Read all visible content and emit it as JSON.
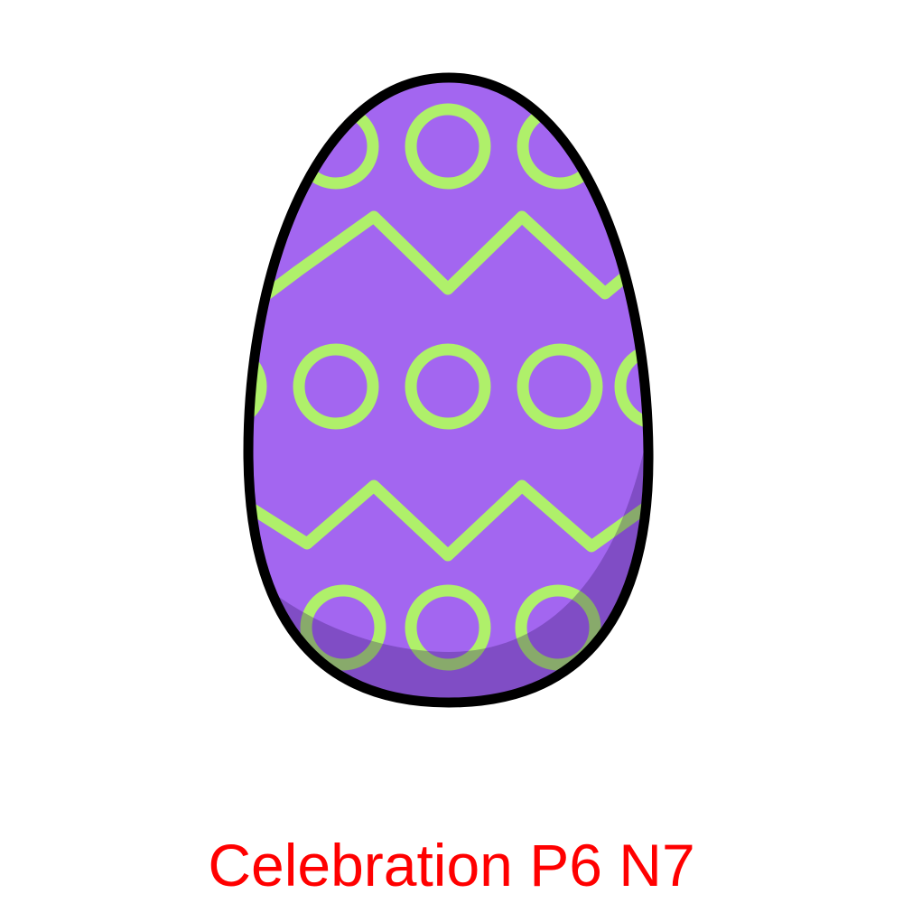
{
  "illustration": {
    "subject": "easter-egg",
    "colors": {
      "egg_fill": "#a366f0",
      "pattern": "#aff06a",
      "outline": "#000000",
      "shadow": "#3a1a6e"
    }
  },
  "caption": {
    "text": "Celebration P6 N7",
    "color": "#ff0000"
  }
}
